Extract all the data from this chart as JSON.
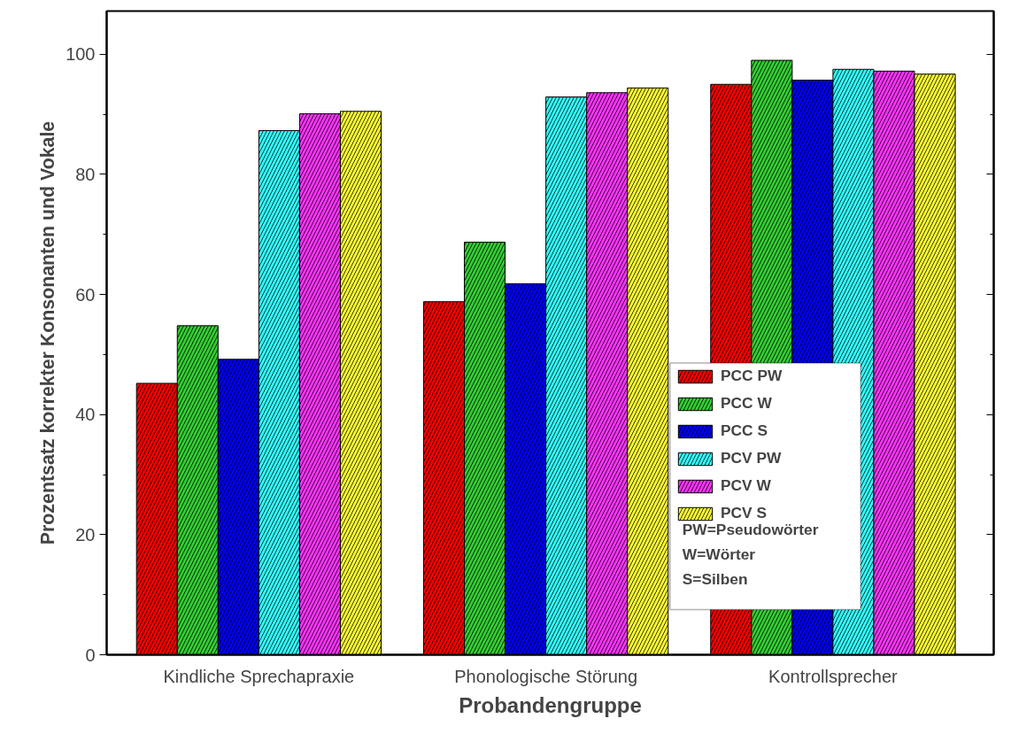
{
  "chart_data": {
    "type": "bar",
    "xlabel": "Probandengruppe",
    "ylabel": "Prozentsatz korrekter Konsonanten und Vokale",
    "categories": [
      "Kindliche Sprechapraxie",
      "Phonologische Störung",
      "Kontrollsprecher"
    ],
    "series": [
      {
        "name": "PCC PW",
        "color": "#ff0000",
        "values": [
          45.2,
          58.8,
          95.0
        ]
      },
      {
        "name": "PCC W",
        "color": "#33cc33",
        "values": [
          54.8,
          68.7,
          99.0
        ]
      },
      {
        "name": "PCC S",
        "color": "#0000ff",
        "values": [
          49.2,
          61.8,
          95.7
        ]
      },
      {
        "name": "PCV PW",
        "color": "#33ffff",
        "values": [
          87.3,
          92.9,
          97.5
        ]
      },
      {
        "name": "PCV W",
        "color": "#ff33ff",
        "values": [
          90.1,
          93.6,
          97.2
        ]
      },
      {
        "name": "PCV S",
        "color": "#ffff33",
        "values": [
          90.5,
          94.4,
          96.7
        ]
      }
    ],
    "annotations": [
      "PW=Pseudowörter",
      "W=Wörter",
      "S=Silben"
    ],
    "ylim": [
      0,
      107.2
    ],
    "yticks": [
      0,
      20,
      40,
      60,
      80,
      100
    ],
    "grid": false,
    "legend": "bottom right"
  }
}
